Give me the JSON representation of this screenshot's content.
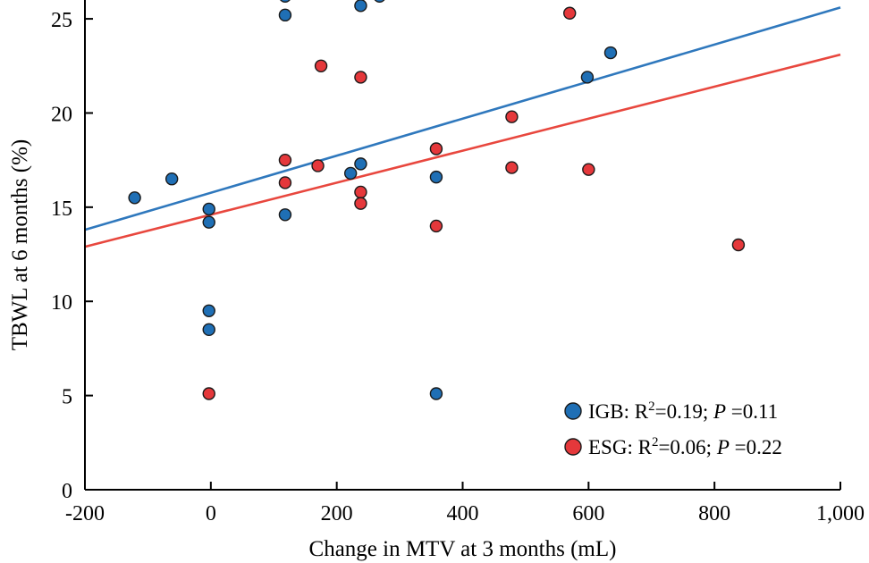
{
  "chart_data": {
    "type": "scatter",
    "title": "",
    "xlabel": "Change in MTV at 3 months (mL)",
    "ylabel": "TBWL at 6 months (%)",
    "xlim": [
      -200,
      1000
    ],
    "ylim": [
      0,
      26
    ],
    "x_ticks": [
      -200,
      0,
      200,
      400,
      600,
      800,
      1000
    ],
    "x_tick_labels": [
      "-200",
      "0",
      "200",
      "400",
      "600",
      "800",
      "1,000"
    ],
    "y_ticks": [
      0,
      5,
      10,
      15,
      20,
      25
    ],
    "y_tick_labels": [
      "0",
      "5",
      "10",
      "15",
      "20",
      "25"
    ],
    "grid": false,
    "legend_position": "bottom-right",
    "series": [
      {
        "name": "IGB",
        "color": "#1f6fb5",
        "line_color": "#2f78bd",
        "trend": {
          "x": [
            -200,
            1000
          ],
          "y": [
            13.8,
            25.6
          ]
        },
        "points": [
          {
            "x": -121,
            "y": 15.5
          },
          {
            "x": -62,
            "y": 16.5
          },
          {
            "x": -3,
            "y": 14.9
          },
          {
            "x": -3,
            "y": 14.2
          },
          {
            "x": -3,
            "y": 9.5
          },
          {
            "x": -3,
            "y": 8.5
          },
          {
            "x": 118,
            "y": 26.2
          },
          {
            "x": 118,
            "y": 25.2
          },
          {
            "x": 118,
            "y": 14.6
          },
          {
            "x": 222,
            "y": 16.8
          },
          {
            "x": 238,
            "y": 25.7
          },
          {
            "x": 238,
            "y": 17.3
          },
          {
            "x": 268,
            "y": 26.2
          },
          {
            "x": 358,
            "y": 16.6
          },
          {
            "x": 358,
            "y": 5.1
          },
          {
            "x": 598,
            "y": 21.9
          },
          {
            "x": 635,
            "y": 23.2
          }
        ]
      },
      {
        "name": "ESG",
        "color": "#e5383b",
        "line_color": "#e8473e",
        "trend": {
          "x": [
            -200,
            1000
          ],
          "y": [
            12.9,
            23.1
          ]
        },
        "points": [
          {
            "x": -3,
            "y": 5.1
          },
          {
            "x": 118,
            "y": 17.5
          },
          {
            "x": 118,
            "y": 16.3
          },
          {
            "x": 170,
            "y": 17.2
          },
          {
            "x": 175,
            "y": 22.5
          },
          {
            "x": 238,
            "y": 21.9
          },
          {
            "x": 238,
            "y": 15.8
          },
          {
            "x": 238,
            "y": 15.2
          },
          {
            "x": 358,
            "y": 18.1
          },
          {
            "x": 358,
            "y": 14.0
          },
          {
            "x": 478,
            "y": 19.8
          },
          {
            "x": 478,
            "y": 17.1
          },
          {
            "x": 570,
            "y": 25.3
          },
          {
            "x": 600,
            "y": 17.0
          },
          {
            "x": 838,
            "y": 13.0
          }
        ]
      }
    ],
    "legend": [
      {
        "series": "IGB",
        "prefix": "IGB: R",
        "sup": "2",
        "mid": "=0.19;  ",
        "p": "P",
        "post": " =0.11"
      },
      {
        "series": "ESG",
        "prefix": "ESG: R",
        "sup": "2",
        "mid": "=0.06;  ",
        "p": "P",
        "post": " =0.22"
      }
    ]
  }
}
